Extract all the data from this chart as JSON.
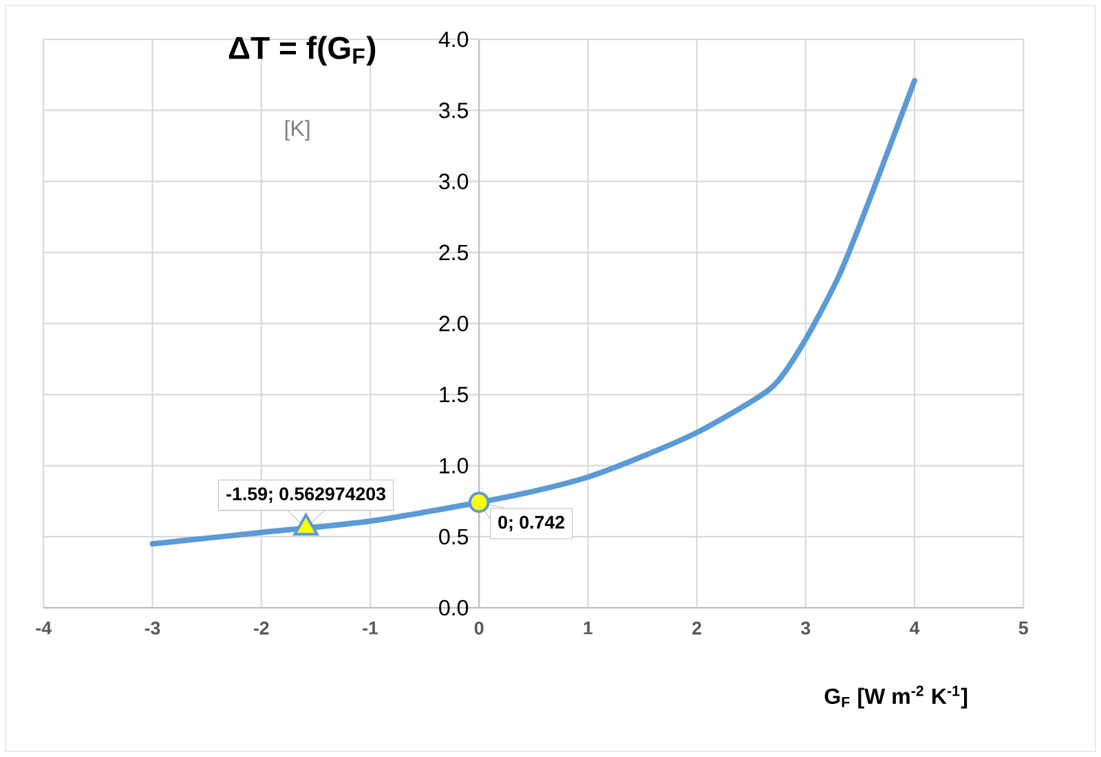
{
  "chart_data": {
    "type": "line",
    "title": "ΔT = f(G$_{F}$)",
    "ylabel": "[K]",
    "xlabel": "G$_{F}$ [W m$^{-2}$ K$^{-1}$]",
    "xlim": [
      -4,
      5
    ],
    "ylim": [
      0,
      4
    ],
    "xticks": [
      -4,
      -3,
      -2,
      -1,
      0,
      1,
      2,
      3,
      4,
      5
    ],
    "yticks": [
      {
        "value": 0,
        "label": "0.0"
      },
      {
        "value": 0.5,
        "label": "0.5"
      },
      {
        "value": 1,
        "label": "1.0"
      },
      {
        "value": 1.5,
        "label": "1.5"
      },
      {
        "value": 2,
        "label": "2.0"
      },
      {
        "value": 2.5,
        "label": "2.5"
      },
      {
        "value": 3,
        "label": "3.0"
      },
      {
        "value": 3.5,
        "label": "3.5"
      },
      {
        "value": 4,
        "label": "4.0"
      }
    ],
    "grid": true,
    "series": [
      {
        "color": "#5b9bd5",
        "x": [
          -3,
          -2,
          -1,
          0,
          0.5,
          1,
          1.5,
          2,
          2.54,
          2.75,
          3,
          3.29,
          3.5,
          3.71,
          4
        ],
        "values": [
          0.45,
          0.53,
          0.61,
          0.742,
          0.82,
          0.92,
          1.065,
          1.233,
          1.47,
          1.6,
          1.89,
          2.31,
          2.7,
          3.12,
          3.71
        ]
      },
      {
        "type": "scatter",
        "marker": "triangle",
        "color": "#ffff00",
        "x": [
          -1.59
        ],
        "values": [
          0.562974203
        ]
      },
      {
        "type": "scatter",
        "marker": "circle",
        "color": "#ffff00",
        "x": [
          0
        ],
        "values": [
          0.742
        ]
      }
    ],
    "annotations": [
      {
        "text": "-1.59; 0.562974203",
        "x": -1.59,
        "y": 0.562974203
      },
      {
        "text": "0; 0.742",
        "x": 0,
        "y": 0.742
      }
    ]
  }
}
